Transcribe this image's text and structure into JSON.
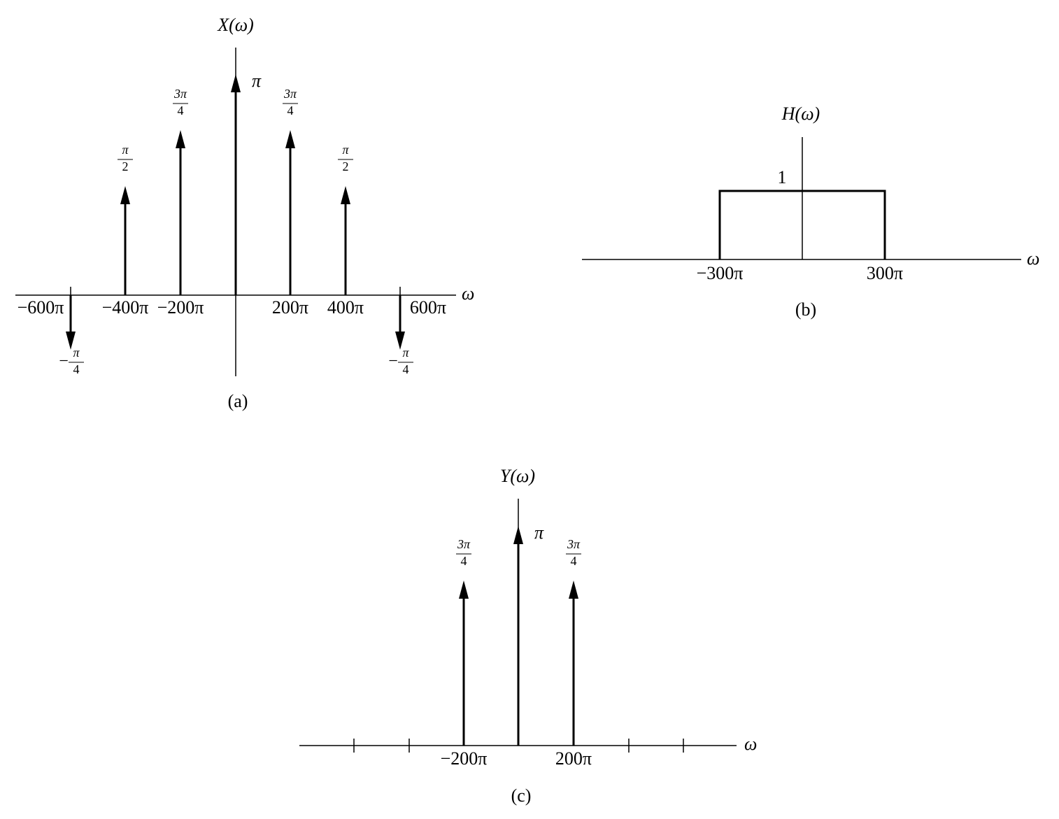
{
  "panel_a": {
    "title": "X(ω)",
    "axis_label": "ω",
    "x_labels": [
      "−600π",
      "−400π",
      "−200π",
      "200π",
      "400π",
      "600π"
    ],
    "impulse_labels": [
      {
        "sign": "−",
        "numerator": "π",
        "denominator": "4"
      },
      {
        "numerator": "π",
        "denominator": "2"
      },
      {
        "numerator": "3π",
        "denominator": "4"
      },
      {
        "label": "π"
      },
      {
        "numerator": "3π",
        "denominator": "4"
      },
      {
        "numerator": "π",
        "denominator": "2"
      },
      {
        "sign": "−",
        "numerator": "π",
        "denominator": "4"
      }
    ],
    "caption": "(a)"
  },
  "panel_b": {
    "title": "H(ω)",
    "axis_label": "ω",
    "level_label": "1",
    "x_labels": [
      "−300π",
      "300π"
    ],
    "caption": "(b)"
  },
  "panel_c": {
    "title": "Y(ω)",
    "axis_label": "ω",
    "x_labels": [
      "−200π",
      "200π"
    ],
    "impulse_labels": [
      {
        "numerator": "3π",
        "denominator": "4"
      },
      {
        "label": "π"
      },
      {
        "numerator": "3π",
        "denominator": "4"
      }
    ],
    "caption": "(c)"
  }
}
